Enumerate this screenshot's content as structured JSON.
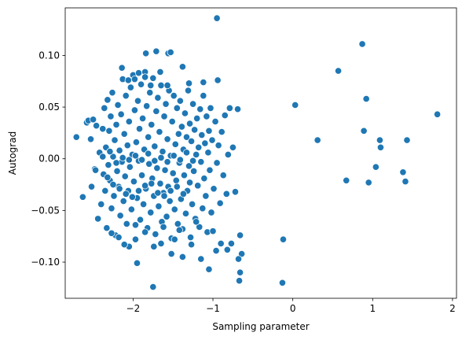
{
  "chart_data": {
    "type": "scatter",
    "title": "",
    "xlabel": "Sampling parameter",
    "ylabel": "Autograd",
    "xlim": [
      -2.85,
      2.05
    ],
    "ylim": [
      -0.135,
      0.146
    ],
    "xticks": [
      -2,
      -1,
      0,
      1,
      2
    ],
    "xtick_labels": [
      "−2",
      "−1",
      "0",
      "1",
      "2"
    ],
    "yticks": [
      -0.1,
      -0.05,
      0.0,
      0.05,
      0.1
    ],
    "ytick_labels": [
      "−0.10",
      "−0.05",
      "0.00",
      "0.05",
      "0.10"
    ],
    "grid": false,
    "legend": "none",
    "color": "#1f77b4",
    "points": [
      [
        -2.71,
        0.021
      ],
      [
        -2.63,
        -0.037
      ],
      [
        -2.58,
        0.035
      ],
      [
        -2.56,
        0.037
      ],
      [
        -2.53,
        0.019
      ],
      [
        -2.52,
        -0.027
      ],
      [
        -2.5,
        0.038
      ],
      [
        -2.48,
        -0.01
      ],
      [
        -2.46,
        0.032
      ],
      [
        -2.44,
        -0.058
      ],
      [
        -2.42,
        0.006
      ],
      [
        -2.4,
        -0.044
      ],
      [
        -2.38,
        0.029
      ],
      [
        -2.37,
        -0.015
      ],
      [
        -2.36,
        0.049
      ],
      [
        -2.35,
        -0.031
      ],
      [
        -2.34,
        0.011
      ],
      [
        -2.33,
        -0.067
      ],
      [
        -2.32,
        0.057
      ],
      [
        -2.31,
        -0.006
      ],
      [
        -2.3,
        0.027
      ],
      [
        -2.29,
        -0.021
      ],
      [
        -2.28,
        0.041
      ],
      [
        -2.27,
        -0.048
      ],
      [
        -2.26,
        0.064
      ],
      [
        -2.25,
        0.002
      ],
      [
        -2.24,
        -0.036
      ],
      [
        -2.23,
        0.018
      ],
      [
        -2.22,
        -0.074
      ],
      [
        -2.21,
        0.033
      ],
      [
        -2.2,
        -0.012
      ],
      [
        -2.19,
        0.052
      ],
      [
        -2.18,
        -0.027
      ],
      [
        -2.17,
        0.008
      ],
      [
        -2.16,
        -0.055
      ],
      [
        -2.15,
        0.043
      ],
      [
        -2.14,
        -0.003
      ],
      [
        -2.13,
        0.077
      ],
      [
        -2.12,
        -0.041
      ],
      [
        -2.11,
        0.024
      ],
      [
        -2.1,
        -0.017
      ],
      [
        -2.09,
        0.061
      ],
      [
        -2.08,
        -0.063
      ],
      [
        -2.07,
        0.013
      ],
      [
        -2.06,
        -0.031
      ],
      [
        -2.05,
        0.036
      ],
      [
        -2.04,
        -0.008
      ],
      [
        -2.03,
        0.069
      ],
      [
        -2.02,
        -0.049
      ],
      [
        -2.01,
        0.004
      ],
      [
        -2.0,
        0.081
      ],
      [
        -1.99,
        -0.022
      ],
      [
        -1.98,
        0.047
      ],
      [
        -1.97,
        -0.078
      ],
      [
        -1.96,
        0.016
      ],
      [
        -1.95,
        -0.038
      ],
      [
        -1.94,
        0.056
      ],
      [
        -1.93,
        -0.002
      ],
      [
        -1.92,
        0.029
      ],
      [
        -1.91,
        -0.059
      ],
      [
        -1.9,
        0.072
      ],
      [
        -1.89,
        -0.016
      ],
      [
        -1.88,
        0.039
      ],
      [
        -1.87,
        -0.044
      ],
      [
        -1.86,
        0.009
      ],
      [
        -1.85,
        0.084
      ],
      [
        -1.84,
        -0.029
      ],
      [
        -1.83,
        0.051
      ],
      [
        -1.82,
        -0.067
      ],
      [
        -1.81,
        0.021
      ],
      [
        -1.8,
        -0.005
      ],
      [
        -1.79,
        0.064
      ],
      [
        -1.78,
        -0.052
      ],
      [
        -1.77,
        0.033
      ],
      [
        -1.76,
        -0.019
      ],
      [
        -1.75,
        0.078
      ],
      [
        -1.74,
        -0.036
      ],
      [
        -1.73,
        0.012
      ],
      [
        -1.72,
        -0.073
      ],
      [
        -1.71,
        0.046
      ],
      [
        -1.7,
        -0.009
      ],
      [
        -1.69,
        0.059
      ],
      [
        -1.68,
        -0.046
      ],
      [
        -1.67,
        0.026
      ],
      [
        -1.66,
        -0.024
      ],
      [
        -1.65,
        0.071
      ],
      [
        -1.64,
        -0.061
      ],
      [
        -1.63,
        0.007
      ],
      [
        -1.62,
        -0.033
      ],
      [
        -1.61,
        0.041
      ],
      [
        -1.6,
        -0.011
      ],
      [
        -1.59,
        0.053
      ],
      [
        -1.58,
        -0.056
      ],
      [
        -1.57,
        0.019
      ],
      [
        -1.56,
        -0.027
      ],
      [
        -1.55,
        0.066
      ],
      [
        -1.54,
        -0.041
      ],
      [
        -1.53,
        0.003
      ],
      [
        -1.52,
        -0.077
      ],
      [
        -1.51,
        0.036
      ],
      [
        -1.5,
        -0.014
      ],
      [
        -1.49,
        0.061
      ],
      [
        -1.48,
        -0.049
      ],
      [
        -1.47,
        0.014
      ],
      [
        -1.46,
        -0.021
      ],
      [
        -1.45,
        0.049
      ],
      [
        -1.44,
        -0.063
      ],
      [
        -1.43,
        0.024
      ],
      [
        -1.42,
        -0.004
      ],
      [
        -1.41,
        0.056
      ],
      [
        -1.4,
        -0.039
      ],
      [
        -1.39,
        0.031
      ],
      [
        -1.38,
        -0.068
      ],
      [
        -1.37,
        0.009
      ],
      [
        -1.36,
        -0.016
      ],
      [
        -1.35,
        0.044
      ],
      [
        -1.34,
        -0.053
      ],
      [
        -1.33,
        0.021
      ],
      [
        -1.32,
        -0.031
      ],
      [
        -1.31,
        0.066
      ],
      [
        -1.3,
        -0.007
      ],
      [
        -1.29,
        0.034
      ],
      [
        -1.28,
        -0.076
      ],
      [
        -1.27,
        0.017
      ],
      [
        -1.26,
        -0.044
      ],
      [
        -1.25,
        0.053
      ],
      [
        -1.24,
        -0.012
      ],
      [
        -1.23,
        0.028
      ],
      [
        -1.22,
        -0.058
      ],
      [
        -1.21,
        0.004
      ],
      [
        -1.2,
        0.039
      ],
      [
        -1.19,
        -0.026
      ],
      [
        -1.18,
        0.011
      ],
      [
        -1.17,
        -0.066
      ],
      [
        -1.16,
        0.048
      ],
      [
        -1.15,
        -0.003
      ],
      [
        -1.14,
        0.023
      ],
      [
        -1.13,
        -0.048
      ],
      [
        -1.12,
        0.061
      ],
      [
        -1.11,
        -0.019
      ],
      [
        -1.1,
        0.015
      ],
      [
        -1.09,
        -0.036
      ],
      [
        -1.08,
        0.041
      ],
      [
        -1.07,
        -0.071
      ],
      [
        -1.06,
        0.006
      ],
      [
        -1.05,
        0.027
      ],
      [
        -1.04,
        -0.011
      ],
      [
        -1.03,
        0.049
      ],
      [
        -1.02,
        -0.052
      ],
      [
        -1.01,
        0.018
      ],
      [
        -0.99,
        -0.029
      ],
      [
        -0.97,
        0.036
      ],
      [
        -0.95,
        -0.004
      ],
      [
        -0.93,
        0.013
      ],
      [
        -0.91,
        -0.043
      ],
      [
        -0.89,
        0.026
      ],
      [
        -0.87,
        -0.016
      ],
      [
        -0.85,
        0.042
      ],
      [
        -0.83,
        -0.034
      ],
      [
        -0.81,
        0.004
      ],
      [
        -0.79,
        0.049
      ],
      [
        -0.77,
        -0.082
      ],
      [
        -0.75,
        0.011
      ],
      [
        -0.72,
        -0.032
      ],
      [
        -0.69,
        0.048
      ],
      [
        -0.66,
        -0.074
      ],
      [
        -0.64,
        -0.092
      ],
      [
        -0.67,
        -0.118
      ],
      [
        -0.66,
        -0.11
      ],
      [
        -0.68,
        -0.097
      ],
      [
        -2.14,
        0.088
      ],
      [
        -1.98,
        0.077
      ],
      [
        -1.85,
        0.079
      ],
      [
        -1.78,
        0.071
      ],
      [
        -1.66,
        0.084
      ],
      [
        -1.57,
        0.071
      ],
      [
        -1.3,
        0.073
      ],
      [
        -1.12,
        0.074
      ],
      [
        -0.94,
        0.076
      ],
      [
        -1.84,
        0.102
      ],
      [
        -1.71,
        0.104
      ],
      [
        -1.56,
        0.102
      ],
      [
        -1.38,
        0.089
      ],
      [
        -1.53,
        0.103
      ],
      [
        -0.95,
        0.136
      ],
      [
        -2.06,
        0.076
      ],
      [
        -1.93,
        0.083
      ],
      [
        -1.75,
        -0.124
      ],
      [
        -1.95,
        -0.101
      ],
      [
        -2.05,
        -0.085
      ],
      [
        -1.65,
        -0.082
      ],
      [
        -1.52,
        -0.092
      ],
      [
        -1.38,
        -0.095
      ],
      [
        -1.15,
        -0.097
      ],
      [
        -1.05,
        -0.107
      ],
      [
        -0.9,
        -0.082
      ],
      [
        -1.27,
        -0.083
      ],
      [
        -1.48,
        -0.078
      ],
      [
        -1.74,
        -0.085
      ],
      [
        -1.85,
        -0.071
      ],
      [
        -2.18,
        -0.076
      ],
      [
        -2.27,
        -0.072
      ],
      [
        -2.11,
        -0.083
      ],
      [
        -1.97,
        -0.064
      ],
      [
        -1.62,
        -0.066
      ],
      [
        -1.42,
        -0.069
      ],
      [
        -1.21,
        -0.061
      ],
      [
        -1.0,
        -0.07
      ],
      [
        -0.96,
        -0.089
      ],
      [
        -0.82,
        -0.088
      ],
      [
        -2.47,
        -0.011
      ],
      [
        -2.38,
        0.002
      ],
      [
        -2.32,
        -0.018
      ],
      [
        -2.29,
        0.007
      ],
      [
        -2.25,
        -0.025
      ],
      [
        -2.21,
        -0.004
      ],
      [
        -2.17,
        -0.029
      ],
      [
        -2.13,
        0.001
      ],
      [
        -2.09,
        -0.034
      ],
      [
        -2.05,
        -0.001
      ],
      [
        -2.01,
        -0.037
      ],
      [
        -1.97,
        0.003
      ],
      [
        -1.93,
        -0.031
      ],
      [
        -1.89,
        -0.001
      ],
      [
        -1.85,
        -0.026
      ],
      [
        -1.81,
        0.005
      ],
      [
        -1.77,
        -0.024
      ],
      [
        -1.73,
        -0.002
      ],
      [
        -1.69,
        -0.033
      ],
      [
        -1.65,
        0.001
      ],
      [
        -1.61,
        -0.036
      ],
      [
        -1.57,
        -0.003
      ],
      [
        -1.53,
        -0.031
      ],
      [
        -1.49,
        0.003
      ],
      [
        -1.45,
        -0.027
      ],
      [
        -1.41,
        -0.001
      ],
      [
        -1.37,
        -0.034
      ],
      [
        -1.33,
        0.006
      ],
      [
        -1.29,
        -0.023
      ],
      [
        -1.25,
        -0.002
      ],
      [
        -0.13,
        -0.12
      ],
      [
        -0.12,
        -0.078
      ],
      [
        0.03,
        0.052
      ],
      [
        0.31,
        0.018
      ],
      [
        0.57,
        0.085
      ],
      [
        0.67,
        -0.021
      ],
      [
        0.87,
        0.111
      ],
      [
        0.89,
        0.027
      ],
      [
        0.92,
        0.058
      ],
      [
        0.95,
        -0.023
      ],
      [
        1.04,
        -0.008
      ],
      [
        1.09,
        0.018
      ],
      [
        1.1,
        0.011
      ],
      [
        1.38,
        -0.013
      ],
      [
        1.41,
        -0.022
      ],
      [
        1.43,
        0.018
      ],
      [
        1.81,
        0.043
      ]
    ]
  }
}
